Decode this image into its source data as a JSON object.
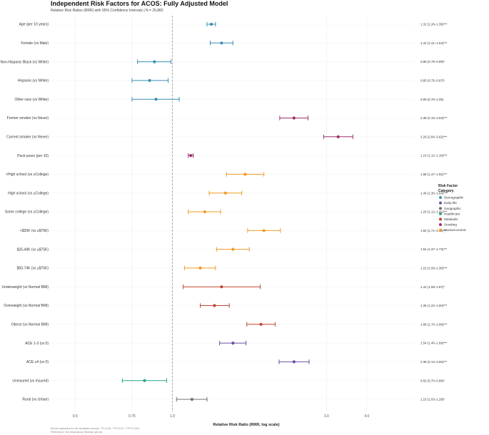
{
  "chart_data": {
    "type": "forest",
    "title": "Independent Risk Factors for ACOS: Fully Adjusted Model",
    "subtitle": "Relative Risk Ratios (RRR) with 95% Confidence Intervals | N = 25,882",
    "xlabel": "Relative Risk Ratio (RRR, log scale)",
    "xscale": "log",
    "xlim": [
      0.42,
      5.6
    ],
    "xticks": [
      0.5,
      0.75,
      1.0,
      3.0,
      4.0
    ],
    "xtick_labels": [
      "0.5",
      "0.75",
      "1.0",
      "3.0",
      "4.0"
    ],
    "reference_line": 1.0,
    "legend": {
      "title_line1": "Risk Factor",
      "title_line2": "Category",
      "position": "right",
      "items": [
        {
          "name": "Demographic",
          "color": "#3b8fb5"
        },
        {
          "name": "Early-life",
          "color": "#6a4ea0"
        },
        {
          "name": "Geographic",
          "color": "#707070"
        },
        {
          "name": "Healthcare",
          "color": "#2aa58a"
        },
        {
          "name": "Metabolic",
          "color": "#c0462f"
        },
        {
          "name": "Smoking",
          "color": "#9b2f6a"
        },
        {
          "name": "Socioeconomic",
          "color": "#f29a24"
        }
      ]
    },
    "rows": [
      {
        "label": "Age (per 10 years)",
        "category": "Demographic",
        "rrr": 1.32,
        "lo": 1.28,
        "hi": 1.36,
        "annotation": "1.32 (1.28–1.36)***"
      },
      {
        "label": "Female (vs Male)",
        "category": "Demographic",
        "rrr": 1.42,
        "lo": 1.31,
        "hi": 1.54,
        "annotation": "1.42 (1.31–1.54)***"
      },
      {
        "label": "Non-Hispanic Black (vs White)",
        "category": "Demographic",
        "rrr": 0.88,
        "lo": 0.78,
        "hi": 0.99,
        "annotation": "0.88 (0.78–0.99)*"
      },
      {
        "label": "Hispanic (vs White)",
        "category": "Demographic",
        "rrr": 0.85,
        "lo": 0.75,
        "hi": 0.97,
        "annotation": "0.85 (0.75–0.97)*"
      },
      {
        "label": "Other race (vs White)",
        "category": "Demographic",
        "rrr": 0.89,
        "lo": 0.75,
        "hi": 1.05,
        "annotation": "0.89 (0.75–1.05)"
      },
      {
        "label": "Former smoker (vs Never)",
        "category": "Smoking",
        "rrr": 2.38,
        "lo": 2.15,
        "hi": 2.63,
        "annotation": "2.38 (2.15–2.63)***"
      },
      {
        "label": "Current smoker (vs Never)",
        "category": "Smoking",
        "rrr": 3.26,
        "lo": 2.94,
        "hi": 3.62,
        "annotation": "3.26 (2.94–3.62)***"
      },
      {
        "label": "Pack-years (per 10)",
        "category": "Smoking",
        "rrr": 1.14,
        "lo": 1.12,
        "hi": 1.16,
        "annotation": "1.14 (1.12–1.16)***"
      },
      {
        "label": "<High school (vs ≥College)",
        "category": "Socioeconomic",
        "rrr": 1.68,
        "lo": 1.47,
        "hi": 1.92,
        "annotation": "1.68 (1.47–1.92)***"
      },
      {
        "label": "High school (vs ≥College)",
        "category": "Socioeconomic",
        "rrr": 1.46,
        "lo": 1.3,
        "hi": 1.64,
        "annotation": "1.46 (1.30–1.64)***"
      },
      {
        "label": "Some college (vs ≥College)",
        "category": "Socioeconomic",
        "rrr": 1.26,
        "lo": 1.12,
        "hi": 1.41,
        "annotation": "1.26 (1.12–1.41)***"
      },
      {
        "label": "<$25K (vs ≥$75K)",
        "category": "Socioeconomic",
        "rrr": 1.92,
        "lo": 1.71,
        "hi": 2.16,
        "annotation": "1.92 (1.71–2.16)***"
      },
      {
        "label": "$25-49K (vs ≥$75K)",
        "category": "Socioeconomic",
        "rrr": 1.54,
        "lo": 1.37,
        "hi": 1.73,
        "annotation": "1.54 (1.37–1.73)***"
      },
      {
        "label": "$50-74K (vs ≥$75K)",
        "category": "Socioeconomic",
        "rrr": 1.22,
        "lo": 1.09,
        "hi": 1.36,
        "annotation": "1.22 (1.09–1.36)***"
      },
      {
        "label": "Underweight (vs Normal BMI)",
        "category": "Metabolic",
        "rrr": 1.42,
        "lo": 1.08,
        "hi": 1.87,
        "annotation": "1.42 (1.08–1.87)*"
      },
      {
        "label": "Overweight (vs Normal BMI)",
        "category": "Metabolic",
        "rrr": 1.35,
        "lo": 1.22,
        "hi": 1.5,
        "annotation": "1.35 (1.22–1.50)***"
      },
      {
        "label": "Obese (vs Normal BMI)",
        "category": "Metabolic",
        "rrr": 1.88,
        "lo": 1.7,
        "hi": 2.08,
        "annotation": "1.88 (1.70–2.08)***"
      },
      {
        "label": "ACE 1-3 (vs 0)",
        "category": "Early-life",
        "rrr": 1.54,
        "lo": 1.4,
        "hi": 1.69,
        "annotation": "1.54 (1.40–1.69)***"
      },
      {
        "label": "ACE ≥4 (vs 0)",
        "category": "Early-life",
        "rrr": 2.38,
        "lo": 2.14,
        "hi": 2.65,
        "annotation": "2.38 (2.14–2.65)***"
      },
      {
        "label": "Uninsured (vs Insured)",
        "category": "Healthcare",
        "rrr": 0.82,
        "lo": 0.7,
        "hi": 0.96,
        "annotation": "0.82 (0.70–0.96)*"
      },
      {
        "label": "Rural (vs Urban)",
        "category": "Geographic",
        "rrr": 1.15,
        "lo": 1.03,
        "hi": 1.28,
        "annotation": "1.15 (1.03–1.28)*"
      }
    ],
    "footnote_line1": "Model adjusted for all variables shown. *P<0.05, **P<0.01, ***P<0.001",
    "footnote_line2": "Reference: No respiratory disease group"
  }
}
